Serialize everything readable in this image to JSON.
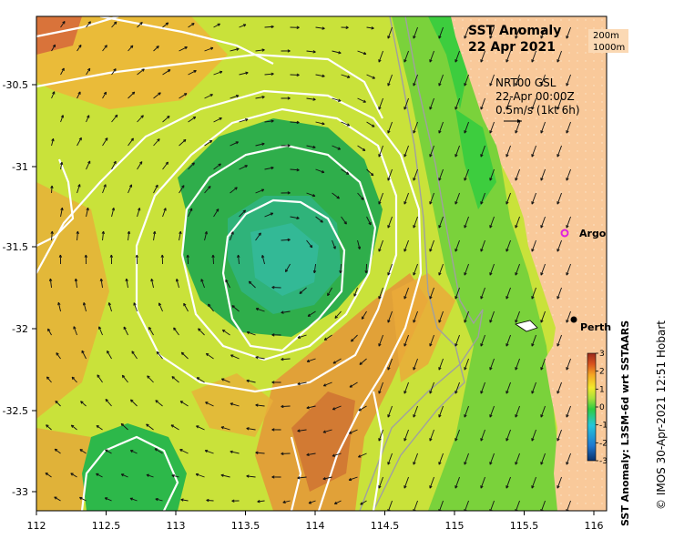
{
  "title": "SST Anomaly",
  "date": "22 Apr 2021",
  "depth_labels": [
    "200m",
    "1000m"
  ],
  "info": {
    "product": "NRT00 GSL",
    "time": "22-Apr 00:00Z",
    "scale": "0.5m/s (1kt 6h)"
  },
  "places": {
    "argo": "Argo",
    "perth": "Perth"
  },
  "colorbar": {
    "label": "SST Anomaly: L3SM-6d wrt SSTAARS",
    "ticks": [
      "3",
      "2",
      "1",
      "0",
      "-1",
      "-2",
      "-3"
    ],
    "colors": [
      "#08306b",
      "#1f78d0",
      "#26c6da",
      "#2ecc40",
      "#a8e03a",
      "#f3e92a",
      "#f5a623",
      "#d9531e",
      "#9b2a1c"
    ]
  },
  "credit": "© IMOS 30-Apr-2021 12:51 Hobart",
  "axes": {
    "x_ticks": [
      "112",
      "112.5",
      "113",
      "113.5",
      "114",
      "114.5",
      "115",
      "115.5",
      "116"
    ],
    "y_ticks": [
      "-30.5",
      "-31",
      "-31.5",
      "-32",
      "-32.5",
      "-33"
    ]
  },
  "colors": {
    "land": "#f9c99a",
    "ocean_base": "#c9e23a",
    "eddy": "#2fae4b",
    "warm": "#e8a23a",
    "hot": "#d9733a",
    "contour": "#ffffff",
    "bathy": "#a0a0a0"
  }
}
